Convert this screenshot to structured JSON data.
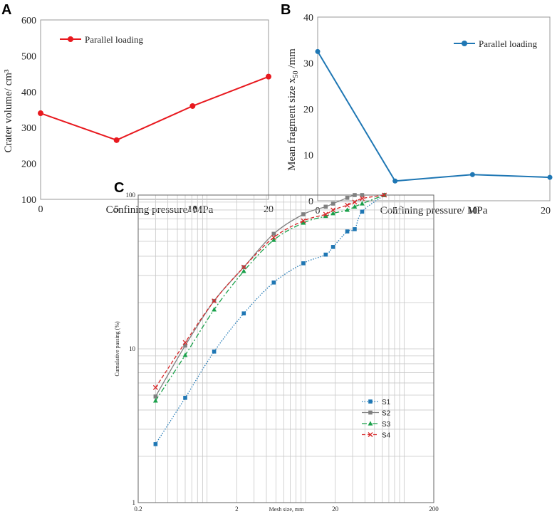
{
  "chart_data": [
    {
      "panel": "A",
      "type": "line",
      "categories": [
        "0",
        "5",
        "10",
        "20"
      ],
      "series": [
        {
          "name": "Parallel loading",
          "values": [
            340,
            265,
            360,
            442
          ],
          "color": "#e8191f"
        }
      ],
      "xlabel": "Confining pressure/ MPa",
      "ylabel": "Crater volume/ cm³",
      "ylim": [
        100,
        600
      ],
      "yticks": [
        "100",
        "200",
        "300",
        "400",
        "500",
        "600"
      ],
      "legend": "top-left"
    },
    {
      "panel": "B",
      "type": "line",
      "categories": [
        "0",
        "5",
        "10",
        "20"
      ],
      "series": [
        {
          "name": "Parallel loading",
          "values": [
            32.5,
            4.3,
            5.7,
            5.1
          ],
          "color": "#1f77b4"
        }
      ],
      "xlabel": "Confining pressure/ MPa",
      "ylabel_main": "Mean fragment size x",
      "ylabel_sub": "50",
      "ylabel_unit": " /mm",
      "ylim": [
        0,
        40
      ],
      "yticks": [
        "0",
        "10",
        "20",
        "30",
        "40"
      ],
      "legend": "top-right"
    },
    {
      "panel": "C",
      "type": "line",
      "xscale": "log",
      "yscale": "log",
      "xlim": [
        0.2,
        200
      ],
      "ylim": [
        1,
        100
      ],
      "xticks": [
        "0.2",
        "2",
        "20",
        "200"
      ],
      "yticks": [
        "1",
        "10",
        "100"
      ],
      "xlabel": "Mesh size, mm",
      "ylabel": "Cumulative passing (%)",
      "legend": "right",
      "series": [
        {
          "name": "S1",
          "color": "#1f77b4",
          "marker": "square",
          "dash": "dotted",
          "x": [
            0.3,
            0.6,
            1.18,
            2.36,
            4.75,
            9.5,
            16,
            19,
            26.5,
            31.5,
            37.5,
            63
          ],
          "y": [
            2.4,
            4.8,
            9.6,
            17,
            27,
            36,
            41,
            46,
            58,
            60,
            78,
            100
          ]
        },
        {
          "name": "S2",
          "color": "#808080",
          "marker": "square",
          "dash": "solid",
          "x": [
            0.3,
            0.6,
            1.18,
            2.36,
            4.75,
            9.5,
            16,
            19,
            26.5,
            31.5,
            37.5,
            63
          ],
          "y": [
            4.9,
            10.5,
            20.5,
            34,
            56,
            75,
            84,
            88,
            96,
            100,
            100,
            100
          ]
        },
        {
          "name": "S3",
          "color": "#1aa04a",
          "marker": "triangle",
          "dash": "dashdot",
          "x": [
            0.3,
            0.6,
            1.18,
            2.36,
            4.75,
            9.5,
            16,
            19,
            26.5,
            31.5,
            37.5,
            63
          ],
          "y": [
            4.6,
            9.1,
            18,
            32,
            51,
            66,
            73,
            76,
            80,
            84,
            88,
            100
          ]
        },
        {
          "name": "S4",
          "color": "#d62728",
          "marker": "cross",
          "dash": "dashed",
          "x": [
            0.3,
            0.6,
            1.18,
            2.36,
            4.75,
            9.5,
            16,
            19,
            26.5,
            31.5,
            37.5,
            63
          ],
          "y": [
            5.6,
            11,
            20.5,
            34,
            53,
            68,
            75,
            80,
            86,
            90,
            95,
            100
          ]
        }
      ]
    }
  ]
}
